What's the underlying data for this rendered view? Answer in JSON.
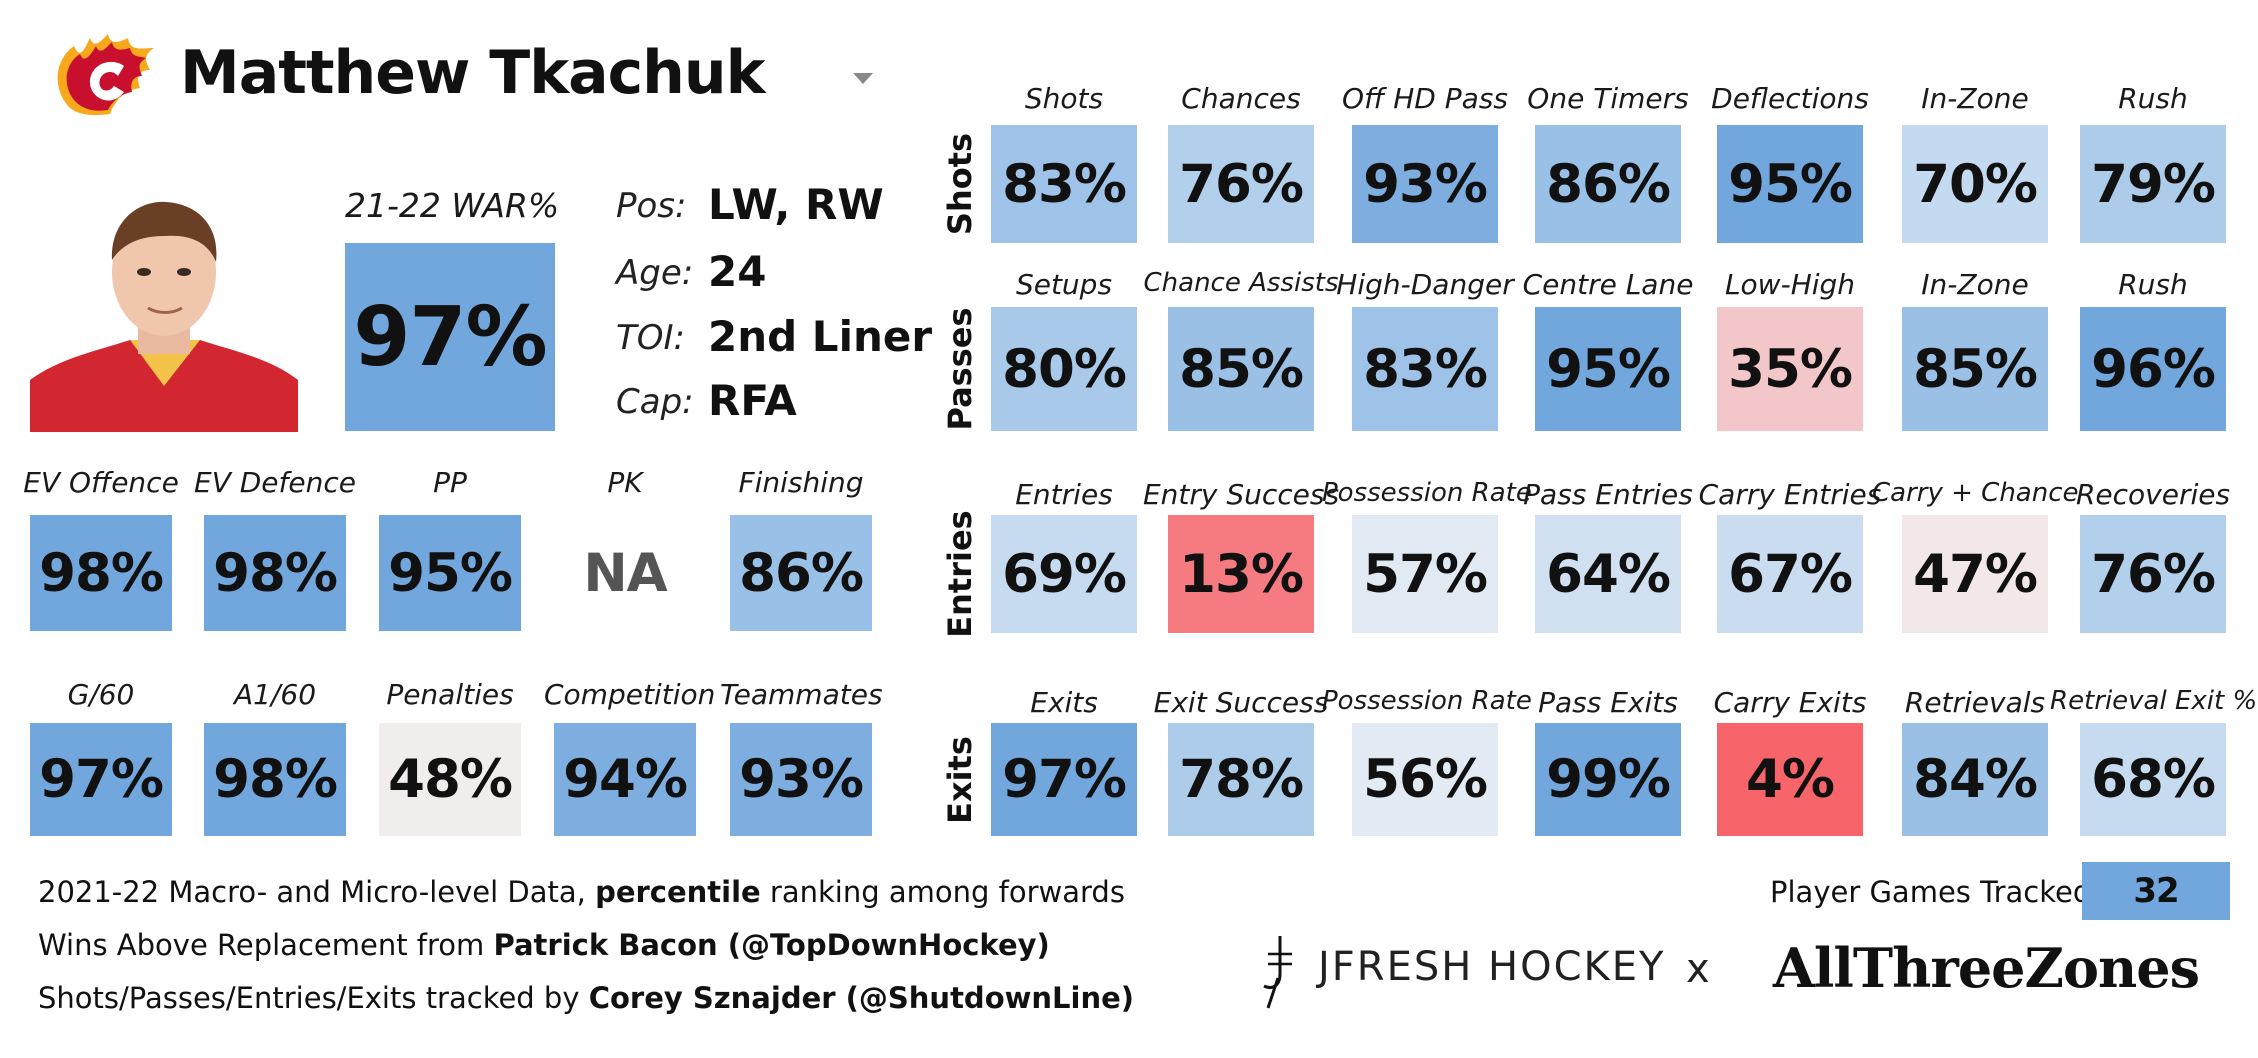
{
  "player": {
    "name": "Matthew Tkachuk",
    "war_label": "21-22 WAR%",
    "war_value": "97%",
    "pos_label": "Pos:",
    "pos": "LW, RW",
    "age_label": "Age:",
    "age": "24",
    "toi_label": "TOI:",
    "toi": "2nd Liner",
    "cap_label": "Cap:",
    "cap": "RFA"
  },
  "left_row1": [
    {
      "label": "EV Offence",
      "value": "98%",
      "color": "#72a7dd"
    },
    {
      "label": "EV Defence",
      "value": "98%",
      "color": "#72a7dd"
    },
    {
      "label": "PP",
      "value": "95%",
      "color": "#72a7dd"
    },
    {
      "label": "PK",
      "value": "NA",
      "color": "#ffffff"
    },
    {
      "label": "Finishing",
      "value": "86%",
      "color": "#99c0e6"
    }
  ],
  "left_row2": [
    {
      "label": "G/60",
      "value": "97%",
      "color": "#72a7dd"
    },
    {
      "label": "A1/60",
      "value": "98%",
      "color": "#72a7dd"
    },
    {
      "label": "Penalties",
      "value": "48%",
      "color": "#f2eded"
    },
    {
      "label": "Competition",
      "value": "94%",
      "color": "#7eaee0"
    },
    {
      "label": "Teammates",
      "value": "93%",
      "color": "#7eaee0"
    }
  ],
  "categories": [
    {
      "name": "Shots",
      "tiles": [
        {
          "label": "Shots",
          "value": "83%",
          "color": "#9fc3e8"
        },
        {
          "label": "Chances",
          "value": "76%",
          "color": "#b2cfec"
        },
        {
          "label": "Off HD Pass",
          "value": "93%",
          "color": "#7eaee0"
        },
        {
          "label": "One Timers",
          "value": "86%",
          "color": "#99c0e6"
        },
        {
          "label": "Deflections",
          "value": "95%",
          "color": "#72a7dd"
        },
        {
          "label": "In-Zone",
          "value": "70%",
          "color": "#c4daf0"
        },
        {
          "label": "Rush",
          "value": "79%",
          "color": "#acccea"
        }
      ]
    },
    {
      "name": "Passes",
      "tiles": [
        {
          "label": "Setups",
          "value": "80%",
          "color": "#a9c9ea"
        },
        {
          "label": "Chance Assists",
          "value": "85%",
          "color": "#9bc0e6"
        },
        {
          "label": "High-Danger",
          "value": "83%",
          "color": "#9fc3e8"
        },
        {
          "label": "Centre Lane",
          "value": "95%",
          "color": "#72a7dd"
        },
        {
          "label": "Low-High",
          "value": "35%",
          "color": "#f3c6c9"
        },
        {
          "label": "In-Zone",
          "value": "85%",
          "color": "#9bc0e6"
        },
        {
          "label": "Rush",
          "value": "96%",
          "color": "#72a7dd"
        }
      ]
    },
    {
      "name": "Entries",
      "tiles": [
        {
          "label": "Entries",
          "value": "69%",
          "color": "#c6dbf0"
        },
        {
          "label": "Entry Success",
          "value": "13%",
          "color": "#f67b80"
        },
        {
          "label": "Possession Rate",
          "value": "57%",
          "color": "#e1e9f2"
        },
        {
          "label": "Pass Entries",
          "value": "64%",
          "color": "#d0e0f0"
        },
        {
          "label": "Carry Entries",
          "value": "67%",
          "color": "#cadcf0"
        },
        {
          "label": "Carry + Chance",
          "value": "47%",
          "color": "#f2e8e8"
        },
        {
          "label": "Recoveries",
          "value": "76%",
          "color": "#b2cfec"
        }
      ]
    },
    {
      "name": "Exits",
      "tiles": [
        {
          "label": "Exits",
          "value": "97%",
          "color": "#72a7dd"
        },
        {
          "label": "Exit Success",
          "value": "78%",
          "color": "#acccea"
        },
        {
          "label": "Possession Rate",
          "value": "56%",
          "color": "#e2eaf3"
        },
        {
          "label": "Pass Exits",
          "value": "99%",
          "color": "#72a7dd"
        },
        {
          "label": "Carry Exits",
          "value": "4%",
          "color": "#f7646a"
        },
        {
          "label": "Retrievals",
          "value": "84%",
          "color": "#9bc0e6"
        },
        {
          "label": "Retrieval Exit %",
          "value": "68%",
          "color": "#c6dbf0"
        }
      ]
    }
  ],
  "games_tracked_label": "Player Games Tracked:",
  "games_tracked_value": "32",
  "footer": {
    "line1_a": "2021-22 Macro- and Micro-level Data, ",
    "line1_b": "percentile",
    "line1_c": " ranking among forwards",
    "line2_a": "Wins Above Replacement from ",
    "line2_b": "Patrick Bacon (@TopDownHockey)",
    "line3_a": "Shots/Passes/Entries/Exits tracked by ",
    "line3_b": "Corey Sznajder (@ShutdownLine)"
  },
  "brands": {
    "jfresh": "JFRESH HOCKEY",
    "x": "x",
    "atz": "AllThreeZones"
  },
  "icons": {
    "team_logo": "flames-logo-icon",
    "dropdown": "dropdown-caret-icon",
    "headshot": "player-headshot",
    "jfresh_logo": "jfresh-logo-icon"
  }
}
